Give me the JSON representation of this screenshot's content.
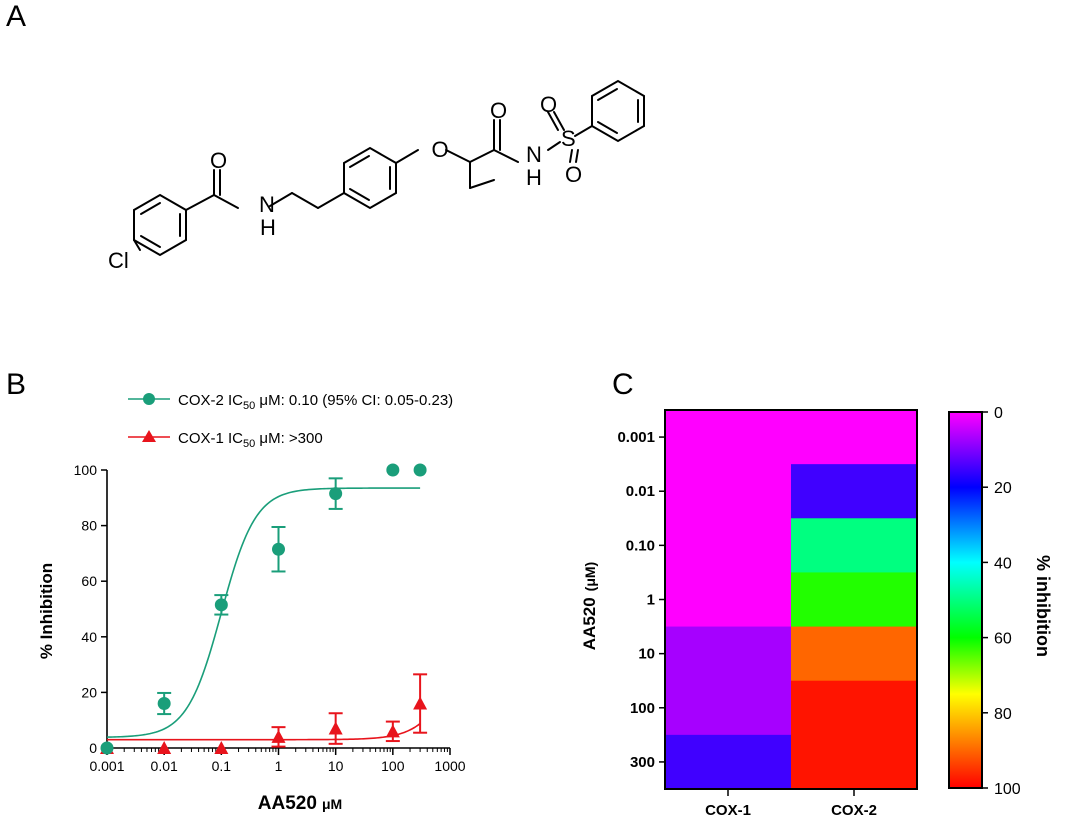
{
  "panels": {
    "a": "A",
    "b": "B",
    "c": "C"
  },
  "structure": {
    "atoms": {
      "O1": "O",
      "N1": "N",
      "H1": "H",
      "O2": "O",
      "O3": "O",
      "N2": "N",
      "H2": "H",
      "S": "S",
      "O4": "O",
      "O5": "O",
      "Cl": "Cl"
    }
  },
  "chart_data": [
    {
      "type": "scatter",
      "panel": "B",
      "xscale": "log",
      "xlim": [
        0.001,
        1000
      ],
      "ylim": [
        0,
        100
      ],
      "xticks": [
        0.001,
        0.01,
        0.1,
        1,
        10,
        100,
        1000
      ],
      "xtick_labels": [
        "0.001",
        "0.01",
        "0.1",
        "1",
        "10",
        "100",
        "1000"
      ],
      "yticks": [
        0,
        20,
        40,
        60,
        80,
        100
      ],
      "ytick_labels": [
        "0",
        "20",
        "40",
        "60",
        "80",
        "100"
      ],
      "xlabel_main": "AA520",
      "xlabel_unit": "μM",
      "ylabel": "% Inhibition",
      "legend_placement": "top",
      "series": [
        {
          "key": "cox2",
          "name_prefix": "COX-2 IC",
          "name_sub": "50",
          "name_suffix": " μM: 0.10 (95% CI: 0.05-0.23)",
          "color": "#1a9e7a",
          "marker": "circle",
          "x": [
            0.001,
            0.01,
            0.1,
            1,
            10,
            100,
            300
          ],
          "y": [
            0,
            16,
            51.5,
            71.5,
            91.5,
            100,
            100
          ],
          "err": [
            0,
            3.8,
            3.5,
            8,
            5.5,
            0,
            0
          ],
          "fit": {
            "bottom": 3.8,
            "top": 93.5,
            "ic50": 0.1,
            "hill": 1.45
          }
        },
        {
          "key": "cox1",
          "name_prefix": "COX-1  IC",
          "name_sub": "50",
          "name_suffix": " μM: >300",
          "color": "#e8141c",
          "marker": "triangle",
          "x": [
            0.001,
            0.01,
            0.1,
            1,
            10,
            100,
            300
          ],
          "y": [
            0,
            0,
            0,
            4,
            7,
            6,
            16
          ],
          "err": [
            0,
            0,
            0,
            3.5,
            5.5,
            3.5,
            10.5
          ],
          "fit": {
            "bottom": 3,
            "top": 100,
            "ic50": 2500,
            "hill": 1.3
          }
        }
      ]
    },
    {
      "type": "heatmap",
      "panel": "C",
      "columns": [
        "COX-1",
        "COX-2"
      ],
      "rows": [
        "0.001",
        "0.01",
        "0.10",
        "1",
        "10",
        "100",
        "300"
      ],
      "ylabel_main": "AA520",
      "ylabel_unit": "(μM)",
      "values": [
        [
          0,
          0
        ],
        [
          0,
          15
        ],
        [
          0,
          50
        ],
        [
          0,
          62
        ],
        [
          7,
          90
        ],
        [
          7,
          98
        ],
        [
          15,
          98
        ]
      ],
      "colorbar": {
        "label": "% inhibition",
        "ticks": [
          0,
          20,
          40,
          60,
          80,
          100
        ],
        "tick_labels": [
          "0",
          "20",
          "40",
          "60",
          "80",
          "100"
        ],
        "stops": [
          {
            "v": 0,
            "color": "#ff00ff"
          },
          {
            "v": 10,
            "color": "#8000ff"
          },
          {
            "v": 20,
            "color": "#0000ff"
          },
          {
            "v": 40,
            "color": "#00ffff"
          },
          {
            "v": 60,
            "color": "#00ff00"
          },
          {
            "v": 75,
            "color": "#ffff00"
          },
          {
            "v": 100,
            "color": "#ff0000"
          }
        ]
      }
    }
  ]
}
